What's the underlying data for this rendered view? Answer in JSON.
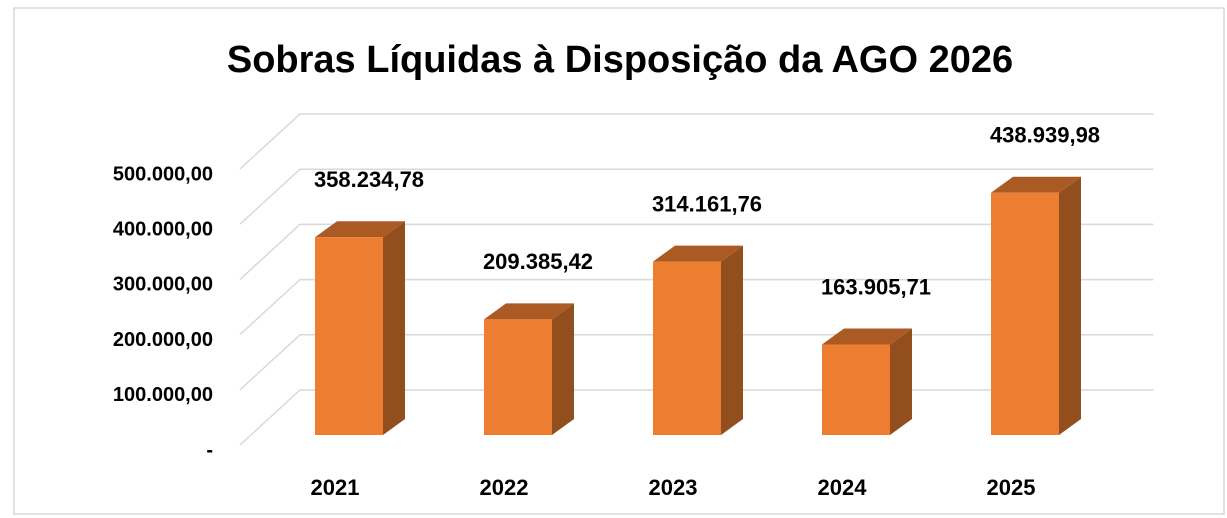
{
  "chart_data": {
    "type": "bar3d",
    "title": "Sobras Líquidas à Disposição da AGO 2026",
    "categories": [
      "2021",
      "2022",
      "2023",
      "2024",
      "2025"
    ],
    "values": [
      358234.78,
      209385.42,
      314161.76,
      163905.71,
      438939.98
    ],
    "value_labels": [
      "358.234,78",
      "209.385,42",
      "314.161,76",
      "163.905,71",
      "438.939,98"
    ],
    "color": "#ed7d31",
    "ylim": [
      0,
      500000
    ],
    "yticks": [
      {
        "value": 0,
        "label": "-"
      },
      {
        "value": 100000,
        "label": "100.000,00"
      },
      {
        "value": 200000,
        "label": "200.000,00"
      },
      {
        "value": 300000,
        "label": "300.000,00"
      },
      {
        "value": 400000,
        "label": "400.000,00"
      },
      {
        "value": 500000,
        "label": "500.000,00"
      }
    ],
    "grid": true
  }
}
